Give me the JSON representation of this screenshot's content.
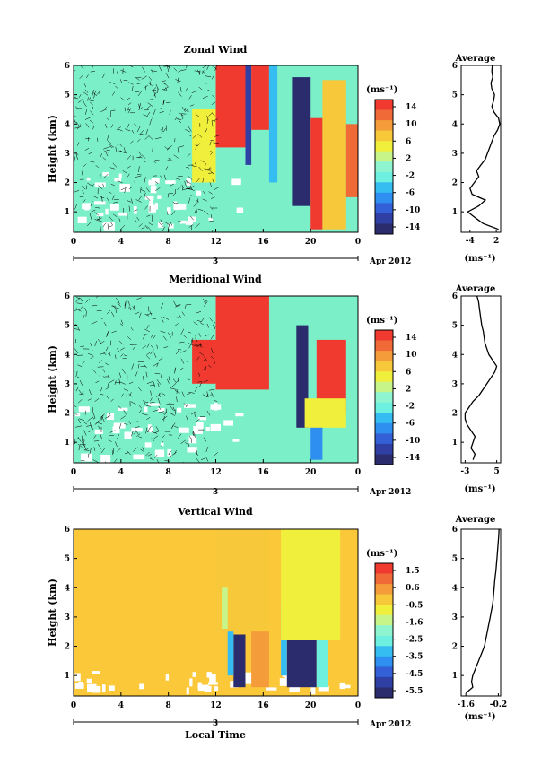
{
  "chart_data": [
    {
      "type": "heatmap",
      "title": "Zonal Wind",
      "ylabel": "Height (km)",
      "xticks": [
        "0",
        "4",
        "8",
        "12",
        "16",
        "20",
        "0"
      ],
      "yticks": [
        "1",
        "2",
        "3",
        "4",
        "5",
        "6"
      ],
      "xlim": [
        0,
        24
      ],
      "ylim": [
        0.3,
        6
      ],
      "date_label": "Apr 2012",
      "day_label": "3",
      "colorbar": {
        "unit": "(ms⁻¹)",
        "ticks": [
          "14",
          "10",
          "6",
          "2",
          "-2",
          "-6",
          "-10",
          "-14"
        ],
        "range": [
          -16,
          16
        ]
      },
      "profile": {
        "title": "Average",
        "xlabel": "(ms⁻¹)",
        "xticks": [
          "-4",
          "2"
        ],
        "xlim": [
          -6,
          3
        ],
        "height": [
          0.4,
          0.6,
          0.8,
          1.0,
          1.2,
          1.4,
          1.6,
          1.8,
          2.0,
          2.2,
          2.4,
          2.6,
          2.8,
          3.0,
          3.2,
          3.4,
          3.6,
          3.8,
          4.0,
          4.2,
          4.4,
          4.6,
          4.8,
          5.0,
          5.2,
          5.4,
          5.6,
          5.8,
          6.0
        ],
        "values": [
          2.5,
          -1.0,
          -2.8,
          -4.5,
          -2.0,
          -0.5,
          -3.5,
          -4.0,
          -3.0,
          -2.0,
          -2.5,
          -1.5,
          -0.5,
          0.0,
          0.5,
          1.0,
          1.5,
          2.3,
          2.8,
          2.5,
          1.5,
          1.0,
          1.4,
          1.6,
          1.0,
          0.8,
          1.2,
          1.0,
          1.1
        ]
      }
    },
    {
      "type": "heatmap",
      "title": "Meridional Wind",
      "ylabel": "Height (km)",
      "xticks": [
        "0",
        "4",
        "8",
        "12",
        "16",
        "20",
        "0"
      ],
      "yticks": [
        "1",
        "2",
        "3",
        "4",
        "5",
        "6"
      ],
      "xlim": [
        0,
        24
      ],
      "ylim": [
        0.3,
        6
      ],
      "date_label": "Apr 2012",
      "day_label": "3",
      "colorbar": {
        "unit": "(ms⁻¹)",
        "ticks": [
          "14",
          "10",
          "6",
          "2",
          "-2",
          "-6",
          "-10",
          "-14"
        ],
        "range": [
          -16,
          16
        ]
      },
      "profile": {
        "title": "Average",
        "xlabel": "(ms⁻¹)",
        "xticks": [
          "-3",
          "5"
        ],
        "xlim": [
          -4,
          6
        ],
        "height": [
          0.4,
          0.6,
          0.8,
          1.0,
          1.2,
          1.4,
          1.6,
          1.8,
          2.0,
          2.2,
          2.4,
          2.6,
          2.8,
          3.0,
          3.2,
          3.4,
          3.6,
          3.8,
          4.0,
          4.2,
          4.4,
          4.6,
          4.8,
          5.0,
          5.2,
          5.4,
          5.6,
          5.8,
          6.0
        ],
        "values": [
          -1.0,
          -0.5,
          -1.5,
          -1.0,
          -0.5,
          -1.5,
          -2.5,
          -3.0,
          -3.0,
          -2.0,
          -1.0,
          0.5,
          1.5,
          2.5,
          3.5,
          4.5,
          5.0,
          4.0,
          3.0,
          2.5,
          2.0,
          1.8,
          1.6,
          1.2,
          1.0,
          0.8,
          0.6,
          0.4,
          0.0
        ]
      }
    },
    {
      "type": "heatmap",
      "title": "Vertical Wind",
      "ylabel": "Height (km)",
      "xlabel": "Local Time",
      "xticks": [
        "0",
        "4",
        "8",
        "12",
        "16",
        "20",
        "0"
      ],
      "yticks": [
        "1",
        "2",
        "3",
        "4",
        "5",
        "6"
      ],
      "xlim": [
        0,
        24
      ],
      "ylim": [
        0.3,
        6
      ],
      "date_label": "Apr 2012",
      "day_label": "3",
      "colorbar": {
        "unit": "(ms⁻¹)",
        "ticks": [
          "1.5",
          "0.6",
          "-0.5",
          "-1.6",
          "-2.5",
          "-3.5",
          "-4.5",
          "-5.5"
        ],
        "range": [
          -6,
          2
        ]
      },
      "profile": {
        "title": "Average",
        "xlabel": "(ms⁻¹)",
        "xticks": [
          "-1.6",
          "-0.2"
        ],
        "xlim": [
          -1.8,
          -0.1
        ],
        "height": [
          0.4,
          0.6,
          0.8,
          1.0,
          1.2,
          1.4,
          1.6,
          1.8,
          2.0,
          2.2,
          2.4,
          2.6,
          2.8,
          3.0,
          3.2,
          3.4,
          3.6,
          3.8,
          4.0,
          4.2,
          4.4,
          4.6,
          4.8,
          5.0,
          5.2,
          5.4,
          5.6,
          5.8,
          6.0
        ],
        "values": [
          -1.6,
          -1.3,
          -1.35,
          -1.3,
          -1.2,
          -1.1,
          -1.0,
          -0.9,
          -0.8,
          -0.75,
          -0.7,
          -0.65,
          -0.6,
          -0.55,
          -0.5,
          -0.45,
          -0.42,
          -0.4,
          -0.38,
          -0.36,
          -0.33,
          -0.3,
          -0.28,
          -0.26,
          -0.24,
          -0.22,
          -0.2,
          -0.18,
          -0.17
        ]
      }
    }
  ],
  "colors": {
    "colormap": [
      "#2b2c6e",
      "#2f3fa3",
      "#3360d6",
      "#2f8ff0",
      "#35bdf2",
      "#6df0e0",
      "#8ff5d0",
      "#c8f58a",
      "#f0f03c",
      "#f7c83a",
      "#f59c3a",
      "#f06a38",
      "#f03a30"
    ],
    "background_fill": "#7bf0c8",
    "vertical_fill": "#fbc83a"
  },
  "regions": {
    "zonal": [
      {
        "x0": 12.0,
        "x1": 14.5,
        "y0": 3.2,
        "y1": 6.0,
        "v": 14
      },
      {
        "x0": 14.5,
        "x1": 15.0,
        "y0": 2.6,
        "y1": 6.0,
        "v": -12
      },
      {
        "x0": 15.0,
        "x1": 16.5,
        "y0": 3.8,
        "y1": 6.0,
        "v": 14
      },
      {
        "x0": 16.5,
        "x1": 17.2,
        "y0": 2.0,
        "y1": 6.0,
        "v": -4
      },
      {
        "x0": 10.0,
        "x1": 12.0,
        "y0": 2.0,
        "y1": 4.5,
        "v": 4
      },
      {
        "x0": 18.5,
        "x1": 20.0,
        "y0": 1.2,
        "y1": 5.6,
        "v": -14
      },
      {
        "x0": 20.0,
        "x1": 21.0,
        "y0": 0.4,
        "y1": 4.2,
        "v": 14
      },
      {
        "x0": 21.0,
        "x1": 23.0,
        "y0": 0.4,
        "y1": 5.5,
        "v": 8
      },
      {
        "x0": 23.0,
        "x1": 24.0,
        "y0": 1.5,
        "y1": 4.0,
        "v": 12
      }
    ],
    "meridional": [
      {
        "x0": 12.0,
        "x1": 16.5,
        "y0": 2.8,
        "y1": 6.0,
        "v": 14
      },
      {
        "x0": 10.0,
        "x1": 12.0,
        "y0": 3.0,
        "y1": 4.5,
        "v": 14
      },
      {
        "x0": 18.8,
        "x1": 19.8,
        "y0": 1.5,
        "y1": 5.0,
        "v": -14
      },
      {
        "x0": 20.5,
        "x1": 23.0,
        "y0": 2.0,
        "y1": 4.5,
        "v": 14
      },
      {
        "x0": 20.0,
        "x1": 21.0,
        "y0": 0.4,
        "y1": 2.0,
        "v": -8
      },
      {
        "x0": 19.5,
        "x1": 23.0,
        "y0": 1.5,
        "y1": 2.5,
        "v": 6
      }
    ],
    "vertical": [
      {
        "x0": 13.5,
        "x1": 14.5,
        "y0": 0.6,
        "y1": 2.4,
        "v": -5.5
      },
      {
        "x0": 13.0,
        "x1": 13.5,
        "y0": 1.0,
        "y1": 2.6,
        "v": -3.0
      },
      {
        "x0": 18.0,
        "x1": 20.5,
        "y0": 0.6,
        "y1": 2.2,
        "v": -5.5
      },
      {
        "x0": 17.5,
        "x1": 18.0,
        "y0": 1.0,
        "y1": 3.5,
        "v": -3.5
      },
      {
        "x0": 20.5,
        "x1": 21.5,
        "y0": 0.6,
        "y1": 2.5,
        "v": -2.5
      },
      {
        "x0": 12.0,
        "x1": 16.5,
        "y0": 2.5,
        "y1": 6.0,
        "v": 0.0
      },
      {
        "x0": 17.5,
        "x1": 22.5,
        "y0": 2.2,
        "y1": 6.0,
        "v": -0.8
      },
      {
        "x0": 12.5,
        "x1": 13.0,
        "y0": 2.6,
        "y1": 4.0,
        "v": -1.6
      },
      {
        "x0": 15.0,
        "x1": 16.5,
        "y0": 0.6,
        "y1": 2.5,
        "v": 0.6
      }
    ]
  }
}
